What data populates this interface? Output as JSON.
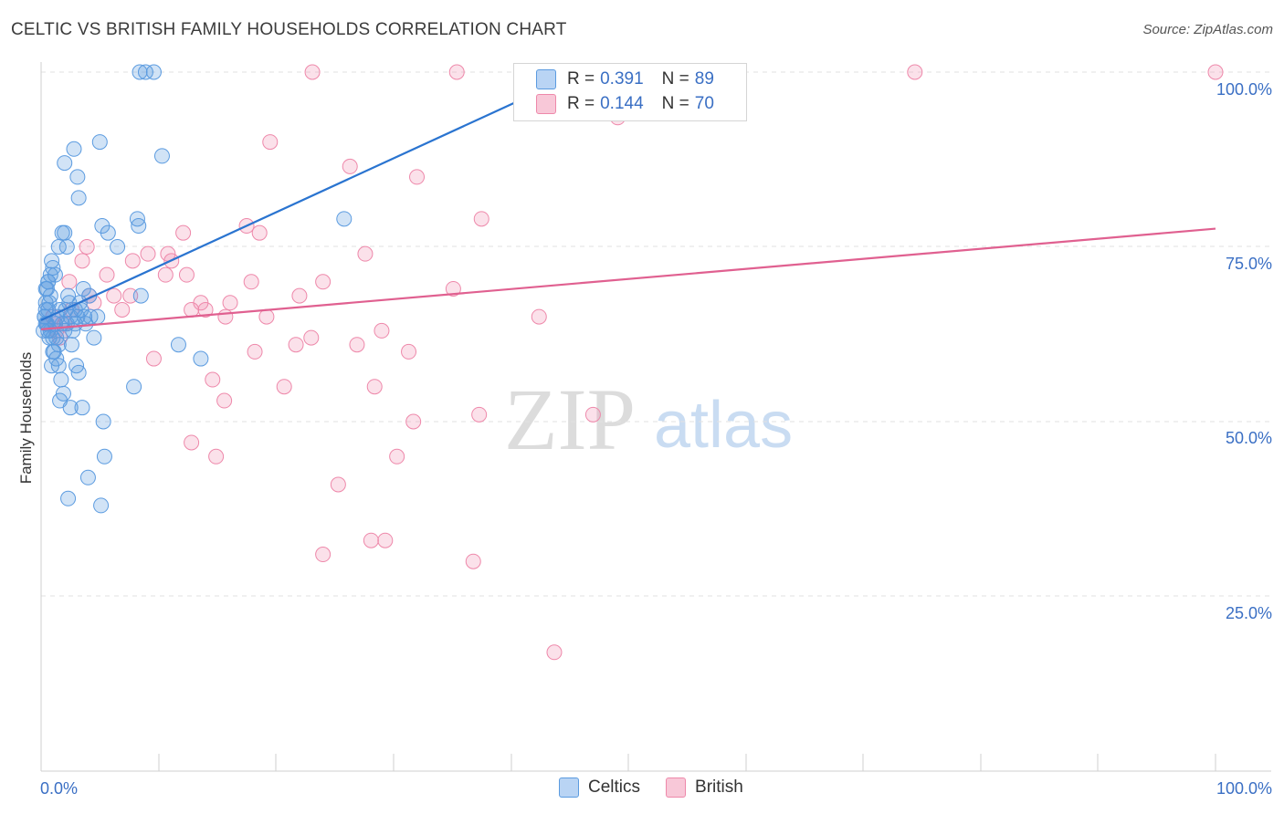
{
  "title": "CELTIC VS BRITISH FAMILY HOUSEHOLDS CORRELATION CHART",
  "source": "Source: ZipAtlas.com",
  "watermark": {
    "zip": "ZIP",
    "atlas": "atlas"
  },
  "colors": {
    "celtics": "#5b9be0",
    "british": "#ee88aa",
    "celtics_line": "#2a74d0",
    "british_line": "#e06090",
    "accent": "#3a6fc4"
  },
  "legend": {
    "rows": [
      {
        "r_label": "R =",
        "r_value": "0.391",
        "n_label": "N =",
        "n_value": "89"
      },
      {
        "r_label": "R =",
        "r_value": "0.144",
        "n_label": "N =",
        "n_value": "70"
      }
    ]
  },
  "bottom_legend": {
    "celtics": "Celtics",
    "british": "British"
  },
  "chart_data": {
    "type": "scatter",
    "title": "CELTIC VS BRITISH FAMILY HOUSEHOLDS CORRELATION CHART",
    "xlabel": "",
    "ylabel": "Family Households",
    "xlim": [
      0,
      100
    ],
    "ylim": [
      0,
      100
    ],
    "x_tick_labels": [
      "0.0%",
      "100.0%"
    ],
    "y_tick_labels": [
      "25.0%",
      "50.0%",
      "75.0%",
      "100.0%"
    ],
    "y_tick_values": [
      25,
      50,
      75,
      100
    ],
    "series": [
      {
        "name": "Celtics",
        "R": 0.391,
        "N": 89,
        "trend": {
          "x0": 0,
          "y0": 64.5,
          "x1": 46,
          "y1": 100
        },
        "points": [
          [
            8.4,
            100
          ],
          [
            8.9,
            100
          ],
          [
            9.6,
            100
          ],
          [
            0.2,
            63
          ],
          [
            0.3,
            65
          ],
          [
            0.4,
            66
          ],
          [
            0.5,
            64
          ],
          [
            0.6,
            63
          ],
          [
            0.7,
            62
          ],
          [
            0.5,
            69
          ],
          [
            0.6,
            70
          ],
          [
            0.8,
            71
          ],
          [
            0.9,
            73
          ],
          [
            1.0,
            72
          ],
          [
            1.2,
            71
          ],
          [
            1.5,
            75
          ],
          [
            1.8,
            77
          ],
          [
            2.0,
            77
          ],
          [
            2.2,
            75
          ],
          [
            0.4,
            67
          ],
          [
            0.8,
            68
          ],
          [
            1.0,
            60
          ],
          [
            1.3,
            59
          ],
          [
            1.5,
            58
          ],
          [
            1.7,
            56
          ],
          [
            1.9,
            54
          ],
          [
            1.6,
            53
          ],
          [
            2.5,
            52
          ],
          [
            3.5,
            52
          ],
          [
            5.3,
            50
          ],
          [
            5.4,
            45
          ],
          [
            4.0,
            42
          ],
          [
            2.3,
            39
          ],
          [
            5.1,
            38
          ],
          [
            2.0,
            87
          ],
          [
            2.8,
            89
          ],
          [
            3.1,
            85
          ],
          [
            3.2,
            82
          ],
          [
            5.0,
            90
          ],
          [
            10.3,
            88
          ],
          [
            5.2,
            78
          ],
          [
            8.2,
            79
          ],
          [
            8.3,
            78
          ],
          [
            5.7,
            77
          ],
          [
            6.5,
            75
          ],
          [
            25.8,
            79
          ],
          [
            2.3,
            68
          ],
          [
            2.5,
            65
          ],
          [
            2.9,
            66
          ],
          [
            3.3,
            67
          ],
          [
            3.6,
            69
          ],
          [
            4.1,
            68
          ],
          [
            4.2,
            65
          ],
          [
            4.5,
            62
          ],
          [
            2.6,
            61
          ],
          [
            3.0,
            58
          ],
          [
            3.2,
            57
          ],
          [
            2.7,
            63
          ],
          [
            1.2,
            64
          ],
          [
            1.4,
            65
          ],
          [
            1.6,
            66
          ],
          [
            1.8,
            64
          ],
          [
            2.0,
            63
          ],
          [
            3.8,
            64
          ],
          [
            4.8,
            65
          ],
          [
            8.5,
            68
          ],
          [
            11.7,
            61
          ],
          [
            13.6,
            59
          ],
          [
            7.9,
            55
          ],
          [
            0.9,
            58
          ],
          [
            1.1,
            60
          ],
          [
            0.3,
            65
          ],
          [
            0.4,
            64
          ],
          [
            0.6,
            66
          ],
          [
            0.7,
            67
          ],
          [
            1.3,
            62
          ],
          [
            1.5,
            61
          ],
          [
            2.1,
            66
          ],
          [
            2.4,
            67
          ],
          [
            3.4,
            66
          ],
          [
            3.7,
            65
          ],
          [
            0.5,
            64
          ],
          [
            0.8,
            63
          ],
          [
            1.0,
            62
          ],
          [
            2.2,
            64
          ],
          [
            2.9,
            64
          ],
          [
            3.1,
            65
          ],
          [
            0.4,
            69
          ],
          [
            0.6,
            70
          ]
        ]
      },
      {
        "name": "British",
        "R": 0.144,
        "N": 70,
        "trend": {
          "x0": 0,
          "y0": 63.2,
          "x1": 100,
          "y1": 77.6
        },
        "points": [
          [
            23.1,
            100
          ],
          [
            35.4,
            100
          ],
          [
            50.9,
            100
          ],
          [
            74.4,
            100
          ],
          [
            100,
            100
          ],
          [
            49.1,
            93.5
          ],
          [
            19.5,
            90
          ],
          [
            26.3,
            86.5
          ],
          [
            32,
            85
          ],
          [
            37.5,
            79
          ],
          [
            0.5,
            64
          ],
          [
            1.0,
            65
          ],
          [
            1.3,
            63
          ],
          [
            1.6,
            62
          ],
          [
            2.0,
            64
          ],
          [
            2.4,
            70
          ],
          [
            2.6,
            66
          ],
          [
            3.5,
            73
          ],
          [
            3.9,
            75
          ],
          [
            4.1,
            68
          ],
          [
            4.5,
            67
          ],
          [
            5.6,
            71
          ],
          [
            6.2,
            68
          ],
          [
            6.9,
            66
          ],
          [
            7.6,
            68
          ],
          [
            7.8,
            73
          ],
          [
            9.1,
            74
          ],
          [
            9.6,
            59
          ],
          [
            10.6,
            71
          ],
          [
            10.8,
            74
          ],
          [
            11.1,
            73
          ],
          [
            12.1,
            77
          ],
          [
            12.4,
            71
          ],
          [
            12.8,
            66
          ],
          [
            13.6,
            67
          ],
          [
            14.0,
            66
          ],
          [
            14.6,
            56
          ],
          [
            15.6,
            53
          ],
          [
            15.7,
            65
          ],
          [
            16.1,
            67
          ],
          [
            17.5,
            78
          ],
          [
            17.9,
            70
          ],
          [
            18.2,
            60
          ],
          [
            18.6,
            77
          ],
          [
            19.2,
            65
          ],
          [
            20.7,
            55
          ],
          [
            21.7,
            61
          ],
          [
            22.0,
            68
          ],
          [
            23.0,
            62
          ],
          [
            24.0,
            70
          ],
          [
            26.9,
            61
          ],
          [
            27.6,
            74
          ],
          [
            28.4,
            55
          ],
          [
            29.0,
            63
          ],
          [
            30.3,
            45
          ],
          [
            31.3,
            60
          ],
          [
            31.7,
            50
          ],
          [
            35.1,
            69
          ],
          [
            37.3,
            51
          ],
          [
            42.4,
            65
          ],
          [
            47.0,
            51
          ],
          [
            12.8,
            47
          ],
          [
            14.9,
            45
          ],
          [
            25.3,
            41
          ],
          [
            28.1,
            33
          ],
          [
            29.3,
            33
          ],
          [
            24.0,
            31
          ],
          [
            36.8,
            30
          ],
          [
            43.7,
            17
          ],
          [
            1.2,
            64
          ]
        ]
      }
    ]
  }
}
